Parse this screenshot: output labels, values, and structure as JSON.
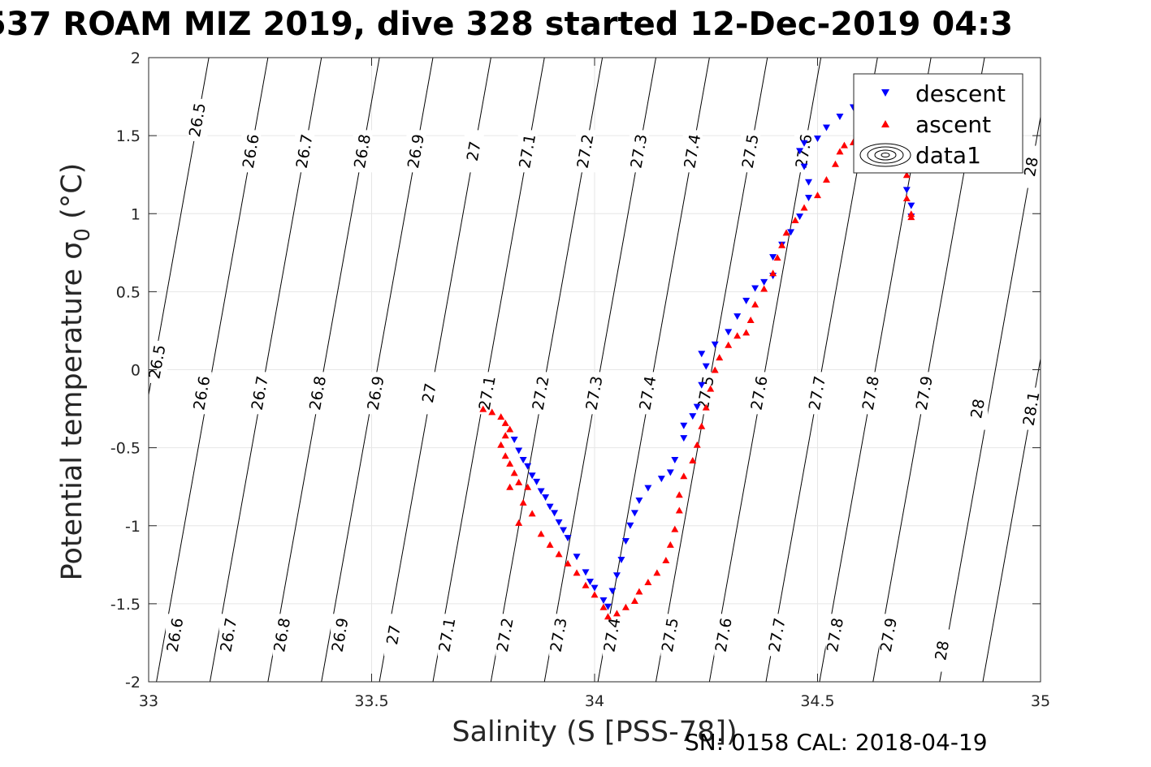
{
  "title": "537 ROAM MIZ 2019, dive 328 started 12-Dec-2019 04:3",
  "footer": "SN: 0158  CAL: 2018-04-19",
  "chart_data": {
    "type": "scatter",
    "xlabel": "Salinity (S [PSS-78])",
    "ylabel": "Potential temperature σ",
    "ylabel_subscript": "0",
    "ylabel_suffix": " (°C)",
    "xlim": [
      33,
      35
    ],
    "ylim": [
      -2,
      2
    ],
    "xticks": [
      33,
      33.5,
      34,
      34.5,
      35
    ],
    "xtick_labels": [
      "33",
      "33.5",
      "34",
      "34.5",
      "35"
    ],
    "yticks": [
      -2,
      -1.5,
      -1,
      -0.5,
      0,
      0.5,
      1,
      1.5,
      2
    ],
    "ytick_labels": [
      "-2",
      "-1.5",
      "-1",
      "-0.5",
      "0",
      "0.5",
      "1",
      "1.5",
      "2"
    ],
    "grid": true,
    "legend_position": "top-right",
    "legend": [
      "descent",
      "ascent",
      "data1"
    ],
    "colors": {
      "descent": "#0000ff",
      "ascent": "#ff0000",
      "isopycnal": "#000000",
      "grid": "#e6e6e6"
    },
    "series": [
      {
        "name": "descent",
        "marker": "triangle-down",
        "points": [
          [
            33.82,
            -0.45
          ],
          [
            33.83,
            -0.52
          ],
          [
            33.84,
            -0.58
          ],
          [
            33.85,
            -0.62
          ],
          [
            33.86,
            -0.68
          ],
          [
            33.87,
            -0.72
          ],
          [
            33.88,
            -0.78
          ],
          [
            33.89,
            -0.82
          ],
          [
            33.9,
            -0.88
          ],
          [
            33.91,
            -0.92
          ],
          [
            33.92,
            -0.98
          ],
          [
            33.93,
            -1.03
          ],
          [
            33.94,
            -1.08
          ],
          [
            33.96,
            -1.2
          ],
          [
            33.98,
            -1.3
          ],
          [
            33.99,
            -1.36
          ],
          [
            34.0,
            -1.4
          ],
          [
            34.02,
            -1.48
          ],
          [
            34.03,
            -1.52
          ],
          [
            34.04,
            -1.42
          ],
          [
            34.05,
            -1.32
          ],
          [
            34.06,
            -1.22
          ],
          [
            34.07,
            -1.1
          ],
          [
            34.08,
            -1.0
          ],
          [
            34.09,
            -0.92
          ],
          [
            34.1,
            -0.84
          ],
          [
            34.12,
            -0.76
          ],
          [
            34.15,
            -0.7
          ],
          [
            34.17,
            -0.66
          ],
          [
            34.18,
            -0.58
          ],
          [
            34.2,
            -0.44
          ],
          [
            34.2,
            -0.36
          ],
          [
            34.22,
            -0.3
          ],
          [
            34.23,
            -0.24
          ],
          [
            34.24,
            -0.1
          ],
          [
            34.25,
            0.02
          ],
          [
            34.24,
            0.1
          ],
          [
            34.27,
            0.16
          ],
          [
            34.3,
            0.24
          ],
          [
            34.32,
            0.34
          ],
          [
            34.34,
            0.44
          ],
          [
            34.36,
            0.52
          ],
          [
            34.38,
            0.56
          ],
          [
            34.4,
            0.6
          ],
          [
            34.4,
            0.72
          ],
          [
            34.42,
            0.8
          ],
          [
            34.44,
            0.88
          ],
          [
            34.46,
            0.98
          ],
          [
            34.48,
            1.1
          ],
          [
            34.48,
            1.2
          ],
          [
            34.47,
            1.3
          ],
          [
            34.46,
            1.4
          ],
          [
            34.47,
            1.45
          ],
          [
            34.5,
            1.48
          ],
          [
            34.52,
            1.55
          ],
          [
            34.55,
            1.62
          ],
          [
            34.58,
            1.68
          ],
          [
            34.6,
            1.7
          ],
          [
            34.62,
            1.65
          ],
          [
            34.65,
            1.55
          ],
          [
            34.67,
            1.45
          ],
          [
            34.69,
            1.3
          ],
          [
            34.7,
            1.15
          ],
          [
            34.71,
            1.05
          ],
          [
            34.71,
            0.98
          ]
        ]
      },
      {
        "name": "ascent",
        "marker": "triangle-up",
        "points": [
          [
            33.75,
            -0.25
          ],
          [
            33.77,
            -0.27
          ],
          [
            33.79,
            -0.3
          ],
          [
            33.8,
            -0.34
          ],
          [
            33.81,
            -0.38
          ],
          [
            33.8,
            -0.42
          ],
          [
            33.79,
            -0.48
          ],
          [
            33.8,
            -0.55
          ],
          [
            33.81,
            -0.6
          ],
          [
            33.82,
            -0.66
          ],
          [
            33.83,
            -0.72
          ],
          [
            33.81,
            -0.75
          ],
          [
            33.85,
            -0.75
          ],
          [
            33.84,
            -0.85
          ],
          [
            33.86,
            -0.92
          ],
          [
            33.83,
            -0.98
          ],
          [
            33.88,
            -1.05
          ],
          [
            33.9,
            -1.12
          ],
          [
            33.92,
            -1.18
          ],
          [
            33.94,
            -1.24
          ],
          [
            33.96,
            -1.3
          ],
          [
            33.98,
            -1.38
          ],
          [
            34.0,
            -1.44
          ],
          [
            34.02,
            -1.52
          ],
          [
            34.03,
            -1.58
          ],
          [
            34.05,
            -1.56
          ],
          [
            34.07,
            -1.52
          ],
          [
            34.09,
            -1.48
          ],
          [
            34.1,
            -1.42
          ],
          [
            34.12,
            -1.36
          ],
          [
            34.14,
            -1.3
          ],
          [
            34.16,
            -1.22
          ],
          [
            34.17,
            -1.12
          ],
          [
            34.18,
            -1.02
          ],
          [
            34.19,
            -0.9
          ],
          [
            34.19,
            -0.8
          ],
          [
            34.2,
            -0.68
          ],
          [
            34.22,
            -0.58
          ],
          [
            34.23,
            -0.48
          ],
          [
            34.24,
            -0.36
          ],
          [
            34.25,
            -0.24
          ],
          [
            34.26,
            -0.12
          ],
          [
            34.27,
            0.0
          ],
          [
            34.28,
            0.08
          ],
          [
            34.3,
            0.16
          ],
          [
            34.32,
            0.22
          ],
          [
            34.34,
            0.24
          ],
          [
            34.35,
            0.32
          ],
          [
            34.36,
            0.42
          ],
          [
            34.38,
            0.52
          ],
          [
            34.4,
            0.62
          ],
          [
            34.41,
            0.72
          ],
          [
            34.42,
            0.8
          ],
          [
            34.43,
            0.88
          ],
          [
            34.45,
            0.96
          ],
          [
            34.47,
            1.04
          ],
          [
            34.5,
            1.12
          ],
          [
            34.52,
            1.22
          ],
          [
            34.54,
            1.32
          ],
          [
            34.55,
            1.4
          ],
          [
            34.56,
            1.44
          ],
          [
            34.58,
            1.46
          ],
          [
            34.6,
            1.5
          ],
          [
            34.62,
            1.56
          ],
          [
            34.63,
            1.6
          ],
          [
            34.65,
            1.55
          ],
          [
            34.67,
            1.45
          ],
          [
            34.68,
            1.35
          ],
          [
            34.7,
            1.25
          ],
          [
            34.7,
            1.1
          ],
          [
            34.71,
            1.0
          ],
          [
            34.71,
            0.98
          ]
        ]
      }
    ],
    "isopycnals": [
      {
        "value": "26.5",
        "labels": [
          [
            33.11,
            1.6
          ],
          [
            33.02,
            0.05
          ]
        ]
      },
      {
        "value": "26.6",
        "labels": [
          [
            33.23,
            1.4
          ],
          [
            33.12,
            -0.15
          ],
          [
            33.06,
            -1.7
          ]
        ]
      },
      {
        "value": "26.7",
        "labels": [
          [
            33.35,
            1.4
          ],
          [
            33.25,
            -0.15
          ],
          [
            33.18,
            -1.7
          ]
        ]
      },
      {
        "value": "26.8",
        "labels": [
          [
            33.48,
            1.4
          ],
          [
            33.38,
            -0.15
          ],
          [
            33.3,
            -1.7
          ]
        ]
      },
      {
        "value": "26.9",
        "labels": [
          [
            33.6,
            1.4
          ],
          [
            33.51,
            -0.15
          ],
          [
            33.43,
            -1.7
          ]
        ]
      },
      {
        "value": "27",
        "labels": [
          [
            33.73,
            1.4
          ],
          [
            33.63,
            -0.15
          ],
          [
            33.55,
            -1.7
          ]
        ]
      },
      {
        "value": "27.1",
        "labels": [
          [
            33.85,
            1.4
          ],
          [
            33.76,
            -0.15
          ],
          [
            33.67,
            -1.7
          ]
        ]
      },
      {
        "value": "27.2",
        "labels": [
          [
            33.98,
            1.4
          ],
          [
            33.88,
            -0.15
          ],
          [
            33.8,
            -1.7
          ]
        ]
      },
      {
        "value": "27.3",
        "labels": [
          [
            34.1,
            1.4
          ],
          [
            34.0,
            -0.15
          ],
          [
            33.92,
            -1.7
          ]
        ]
      },
      {
        "value": "27.4",
        "labels": [
          [
            34.22,
            1.4
          ],
          [
            34.12,
            -0.15
          ],
          [
            34.04,
            -1.7
          ]
        ]
      },
      {
        "value": "27.5",
        "labels": [
          [
            34.35,
            1.4
          ],
          [
            34.25,
            -0.15
          ],
          [
            34.17,
            -1.7
          ]
        ]
      },
      {
        "value": "27.6",
        "labels": [
          [
            34.47,
            1.4
          ],
          [
            34.37,
            -0.15
          ],
          [
            34.29,
            -1.7
          ]
        ]
      },
      {
        "value": "27.7",
        "labels": [
          [
            34.5,
            -0.15
          ],
          [
            34.41,
            -1.7
          ]
        ]
      },
      {
        "value": "27.8",
        "labels": [
          [
            34.62,
            -0.15
          ],
          [
            34.54,
            -1.7
          ]
        ]
      },
      {
        "value": "27.9",
        "labels": [
          [
            34.74,
            -0.15
          ],
          [
            34.66,
            -1.7
          ]
        ]
      },
      {
        "value": "28",
        "labels": [
          [
            34.98,
            1.3
          ],
          [
            34.86,
            -0.25
          ],
          [
            34.78,
            -1.8
          ]
        ]
      },
      {
        "value": "28.1",
        "labels": [
          [
            34.98,
            -0.25
          ]
        ]
      }
    ]
  }
}
